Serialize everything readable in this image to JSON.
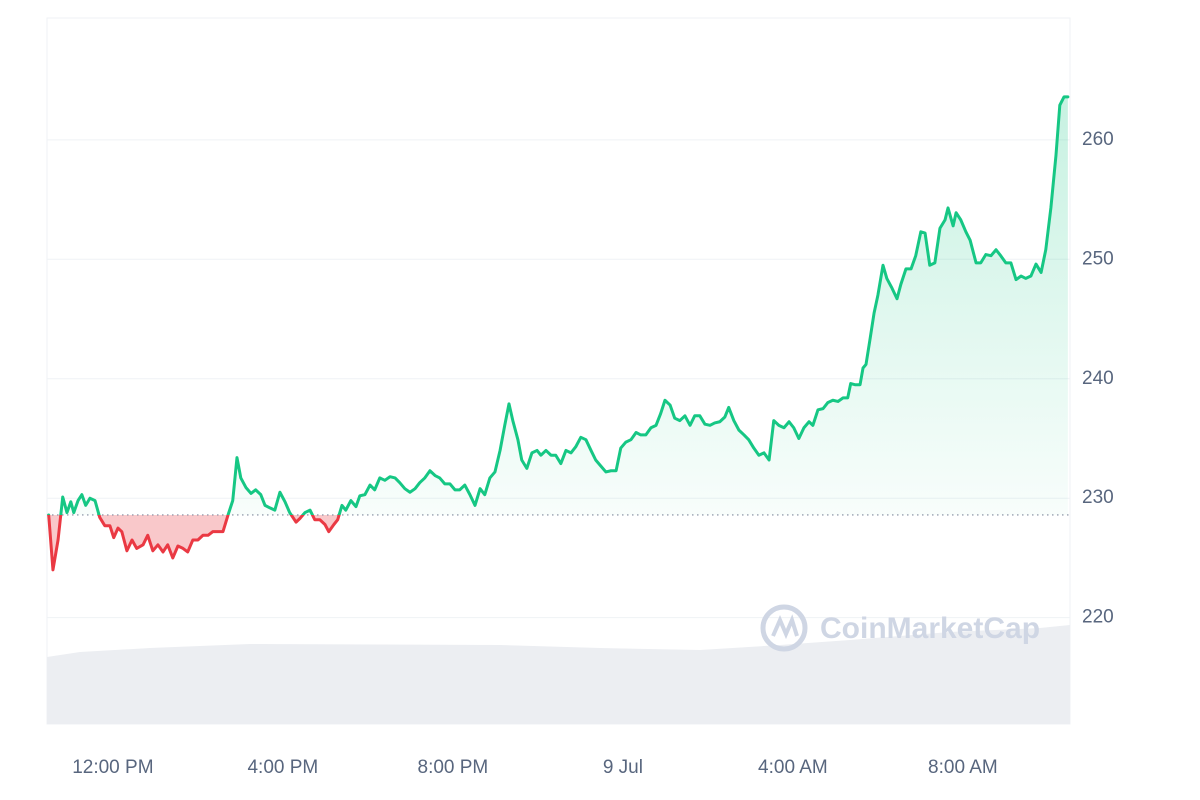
{
  "chart_data": {
    "type": "line",
    "watermark": "CoinMarketCap",
    "up_color": "#16c784",
    "down_color": "#ea3943",
    "grid": true,
    "xlim": [
      -1.55,
      22.52
    ],
    "xticks": [
      {
        "value": 0,
        "label": "12:00 PM"
      },
      {
        "value": 4,
        "label": "4:00 PM"
      },
      {
        "value": 8,
        "label": "8:00 PM"
      },
      {
        "value": 12,
        "label": "9 Jul"
      },
      {
        "value": 16,
        "label": "4:00 AM"
      },
      {
        "value": 20,
        "label": "8:00 AM"
      }
    ],
    "ylim": [
      211.1,
      270.2
    ],
    "yticks": [
      220,
      230,
      240,
      250,
      260
    ],
    "x": [
      -1.51,
      -1.41,
      -1.29,
      -1.18,
      -1.08,
      -0.99,
      -0.92,
      -0.82,
      -0.73,
      -0.64,
      -0.54,
      -0.42,
      -0.31,
      -0.19,
      -0.07,
      0.02,
      0.12,
      0.21,
      0.33,
      0.45,
      0.56,
      0.71,
      0.82,
      0.94,
      1.06,
      1.18,
      1.29,
      1.41,
      1.53,
      1.65,
      1.76,
      1.88,
      2.0,
      2.12,
      2.24,
      2.35,
      2.47,
      2.59,
      2.71,
      2.82,
      2.92,
      3.01,
      3.13,
      3.25,
      3.36,
      3.48,
      3.58,
      3.69,
      3.81,
      3.93,
      4.05,
      4.16,
      4.31,
      4.4,
      4.52,
      4.64,
      4.75,
      4.87,
      4.99,
      5.08,
      5.2,
      5.29,
      5.39,
      5.48,
      5.6,
      5.72,
      5.81,
      5.93,
      6.05,
      6.16,
      6.28,
      6.4,
      6.52,
      6.64,
      6.75,
      6.87,
      6.99,
      7.11,
      7.22,
      7.34,
      7.46,
      7.58,
      7.69,
      7.81,
      7.93,
      8.05,
      8.16,
      8.28,
      8.4,
      8.52,
      8.64,
      8.75,
      8.87,
      8.99,
      9.11,
      9.22,
      9.32,
      9.41,
      9.53,
      9.62,
      9.74,
      9.86,
      9.98,
      10.07,
      10.19,
      10.31,
      10.42,
      10.54,
      10.66,
      10.78,
      10.89,
      11.01,
      11.13,
      11.25,
      11.36,
      11.48,
      11.6,
      11.72,
      11.84,
      11.95,
      12.07,
      12.19,
      12.31,
      12.42,
      12.54,
      12.66,
      12.78,
      12.89,
      12.99,
      13.11,
      13.22,
      13.34,
      13.46,
      13.58,
      13.69,
      13.81,
      13.93,
      14.05,
      14.16,
      14.28,
      14.4,
      14.49,
      14.61,
      14.73,
      14.85,
      14.96,
      15.08,
      15.2,
      15.32,
      15.44,
      15.55,
      15.67,
      15.79,
      15.91,
      16.02,
      16.14,
      16.26,
      16.38,
      16.47,
      16.59,
      16.71,
      16.82,
      16.94,
      17.06,
      17.18,
      17.29,
      17.36,
      17.46,
      17.58,
      17.65,
      17.72,
      17.81,
      17.91,
      18.0,
      18.12,
      18.21,
      18.33,
      18.45,
      18.54,
      18.66,
      18.78,
      18.89,
      19.01,
      19.11,
      19.22,
      19.34,
      19.46,
      19.58,
      19.65,
      19.77,
      19.84,
      19.95,
      20.07,
      20.17,
      20.31,
      20.42,
      20.54,
      20.66,
      20.78,
      20.89,
      21.01,
      21.13,
      21.25,
      21.37,
      21.48,
      21.6,
      21.72,
      21.84,
      21.95,
      22.07,
      22.19,
      22.28,
      22.38,
      22.47
    ],
    "values": [
      228.6,
      224.0,
      226.5,
      230.1,
      228.8,
      229.7,
      228.8,
      229.8,
      230.3,
      229.4,
      230.0,
      229.8,
      228.4,
      227.7,
      227.7,
      226.7,
      227.5,
      227.2,
      225.6,
      226.5,
      225.8,
      226.1,
      226.9,
      225.6,
      226.1,
      225.5,
      226.1,
      225.0,
      226.0,
      225.8,
      225.5,
      226.5,
      226.5,
      226.9,
      226.9,
      227.2,
      227.2,
      227.2,
      228.6,
      229.8,
      233.4,
      231.7,
      230.9,
      230.4,
      230.7,
      230.3,
      229.4,
      229.2,
      229.0,
      230.5,
      229.7,
      228.8,
      228.0,
      228.3,
      228.8,
      229.0,
      228.2,
      228.2,
      227.8,
      227.2,
      227.8,
      228.2,
      229.4,
      229.0,
      229.8,
      229.3,
      230.2,
      230.3,
      231.1,
      230.7,
      231.7,
      231.5,
      231.8,
      231.7,
      231.3,
      230.8,
      230.5,
      230.8,
      231.3,
      231.7,
      232.3,
      231.9,
      231.7,
      231.2,
      231.2,
      230.7,
      230.7,
      231.1,
      230.3,
      229.4,
      230.8,
      230.3,
      231.7,
      232.2,
      234.0,
      236.1,
      237.9,
      236.5,
      234.9,
      233.2,
      232.5,
      233.8,
      234.0,
      233.6,
      234.0,
      233.6,
      233.6,
      232.9,
      234.0,
      233.8,
      234.3,
      235.1,
      234.9,
      234.0,
      233.2,
      232.7,
      232.2,
      232.3,
      232.3,
      234.2,
      234.7,
      234.9,
      235.5,
      235.3,
      235.3,
      235.9,
      236.1,
      237.1,
      238.2,
      237.8,
      236.7,
      236.5,
      236.9,
      236.1,
      236.9,
      236.9,
      236.2,
      236.1,
      236.3,
      236.4,
      236.8,
      237.6,
      236.5,
      235.7,
      235.3,
      234.9,
      234.2,
      233.6,
      233.8,
      233.2,
      236.5,
      236.1,
      235.9,
      236.4,
      235.9,
      235.0,
      235.9,
      236.4,
      236.1,
      237.4,
      237.5,
      238.0,
      238.2,
      238.1,
      238.4,
      238.4,
      239.6,
      239.5,
      239.5,
      240.9,
      241.2,
      243.2,
      245.5,
      247.0,
      249.5,
      248.4,
      247.6,
      246.7,
      247.9,
      249.2,
      249.2,
      250.3,
      252.3,
      252.2,
      249.5,
      249.7,
      252.6,
      253.3,
      254.3,
      252.8,
      253.9,
      253.3,
      252.3,
      251.6,
      249.7,
      249.7,
      250.4,
      250.3,
      250.8,
      250.3,
      249.7,
      249.7,
      248.3,
      248.6,
      248.4,
      248.6,
      249.6,
      248.9,
      250.8,
      254.3,
      258.7,
      262.9,
      263.6,
      263.6
    ]
  }
}
